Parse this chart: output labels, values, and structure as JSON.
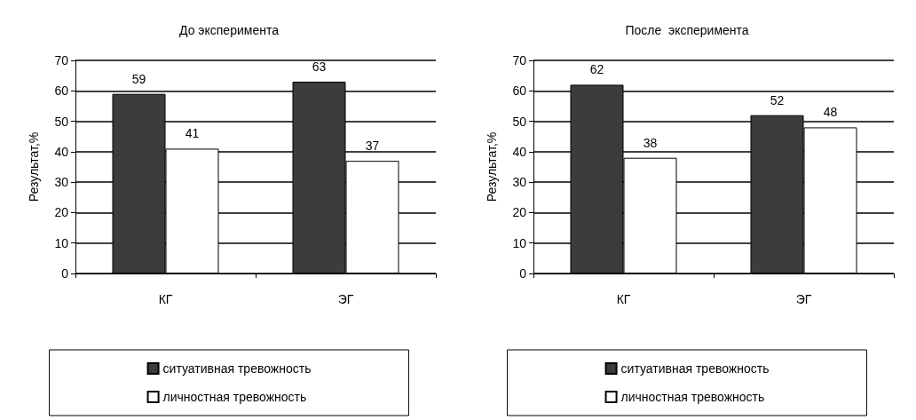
{
  "chart_data": [
    {
      "type": "bar",
      "title": "До эксперимента",
      "ylabel": "Результат,%",
      "categories": [
        "КГ",
        "ЭГ"
      ],
      "series": [
        {
          "name": "ситуативная тревожность",
          "color": "#3c3c3c",
          "values": [
            59,
            63
          ]
        },
        {
          "name": "личностная тревожность",
          "color": "#ffffff",
          "values": [
            41,
            37
          ]
        }
      ],
      "ylim": [
        0,
        70
      ],
      "yticks": [
        0,
        10,
        20,
        30,
        40,
        50,
        60,
        70
      ],
      "grid": "y",
      "legend": "bottom",
      "data_labels": true
    },
    {
      "type": "bar",
      "title": "После  эксперимента",
      "ylabel": "Результат,%",
      "categories": [
        "КГ",
        "ЭГ"
      ],
      "series": [
        {
          "name": "ситуативная тревожность",
          "color": "#3c3c3c",
          "values": [
            62,
            52
          ]
        },
        {
          "name": "личностная тревожность",
          "color": "#ffffff",
          "values": [
            38,
            48
          ]
        }
      ],
      "ylim": [
        0,
        70
      ],
      "yticks": [
        0,
        10,
        20,
        30,
        40,
        50,
        60,
        70
      ],
      "grid": "y",
      "legend": "bottom",
      "data_labels": true
    }
  ]
}
